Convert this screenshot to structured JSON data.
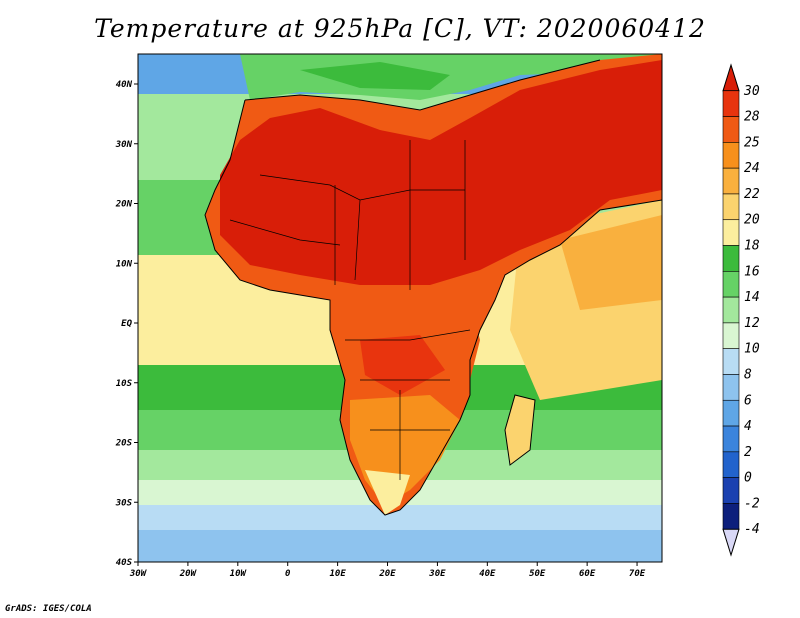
{
  "title": "Temperature at 925hPa [C], VT: 2020060412",
  "credit": "GrADS: IGES/COLA",
  "axes": {
    "lon_ticks": [
      "30W",
      "20W",
      "10W",
      "0",
      "10E",
      "20E",
      "30E",
      "40E",
      "50E",
      "60E",
      "70E"
    ],
    "lat_ticks": [
      "40N",
      "30N",
      "20N",
      "10N",
      "EQ",
      "10S",
      "20S",
      "30S",
      "40S"
    ]
  },
  "colorbar": {
    "labels": [
      "30",
      "28",
      "25",
      "24",
      "22",
      "20",
      "18",
      "16",
      "14",
      "12",
      "10",
      "8",
      "6",
      "4",
      "2",
      "0",
      "-2",
      "-4"
    ],
    "colors": [
      "#e8340e",
      "#f05a14",
      "#f7901c",
      "#f9b03e",
      "#fbd36e",
      "#fcee9e",
      "#3cbb3c",
      "#66d266",
      "#a3e89d",
      "#d9f6d2",
      "#b8dcf4",
      "#8ec3ee",
      "#5fa6e6",
      "#3b84dc",
      "#2263cc",
      "#1b41b0",
      "#0d1f7c",
      "#d9d8f6"
    ]
  },
  "map": {
    "regions": [
      {
        "name": "ocean-north",
        "color": "#3cbb3c"
      },
      {
        "name": "sahara",
        "color": "#d81e08"
      },
      {
        "name": "gulf-of-guinea",
        "color": "#fcee9e"
      },
      {
        "name": "southern-ocean",
        "color": "#66a8e0"
      }
    ]
  }
}
